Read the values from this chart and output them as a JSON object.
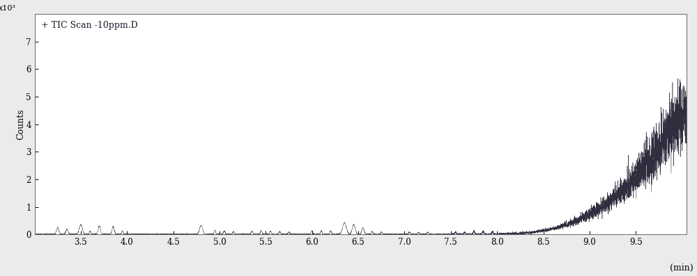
{
  "legend_text": "+ TIC Scan -10ppm.D",
  "xlabel": "(min)",
  "ylabel": "Counts",
  "y_scale_label": "x10³",
  "xmin": 3.0,
  "xmax": 10.05,
  "ymin": 0,
  "ymax": 8.0,
  "xticks": [
    3.5,
    4.0,
    4.5,
    5.0,
    5.5,
    6.0,
    6.5,
    7.0,
    7.5,
    8.0,
    8.5,
    9.0,
    9.5
  ],
  "yticks": [
    0,
    1,
    2,
    3,
    4,
    5,
    6,
    7
  ],
  "line_color": "#1c1c2e",
  "bg_color": "#ebebeb",
  "plot_bg_color": "#ffffff",
  "title_fontsize": 9,
  "axis_fontsize": 9,
  "tick_fontsize": 8.5,
  "seed": 99
}
